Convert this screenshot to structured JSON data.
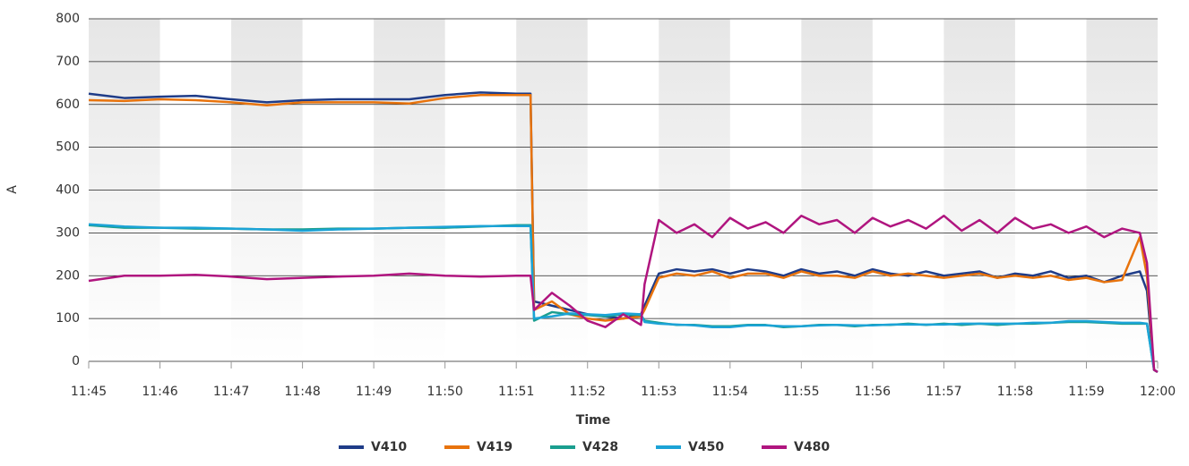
{
  "chart_data": {
    "type": "line",
    "y_label": "A",
    "x_label": "Time",
    "x": [
      705,
      705.5,
      706,
      706.5,
      707,
      707.5,
      708,
      708.5,
      709,
      709.5,
      710,
      710.5,
      711,
      711.2,
      711.25,
      711.5,
      711.75,
      712,
      712.25,
      712.5,
      712.75,
      712.8,
      713,
      713.25,
      713.5,
      713.75,
      714,
      714.25,
      714.5,
      714.75,
      715,
      715.25,
      715.5,
      715.75,
      716,
      716.25,
      716.5,
      716.75,
      717,
      717.25,
      717.5,
      717.75,
      718,
      718.25,
      718.5,
      718.75,
      719,
      719.25,
      719.5,
      719.75,
      719.85,
      719.95,
      720
    ],
    "series": [
      {
        "name": "V410",
        "color": "#1f3c88",
        "values": [
          625,
          615,
          618,
          620,
          612,
          605,
          610,
          612,
          612,
          612,
          622,
          628,
          625,
          625,
          140,
          130,
          120,
          110,
          105,
          100,
          110,
          130,
          205,
          215,
          210,
          215,
          205,
          215,
          210,
          200,
          215,
          205,
          210,
          200,
          215,
          205,
          200,
          210,
          200,
          205,
          210,
          195,
          205,
          200,
          210,
          195,
          200,
          185,
          200,
          210,
          165,
          -20,
          -25
        ]
      },
      {
        "name": "V419",
        "color": "#e8730c",
        "values": [
          610,
          608,
          612,
          610,
          605,
          598,
          605,
          605,
          605,
          602,
          615,
          622,
          622,
          622,
          120,
          140,
          110,
          100,
          95,
          100,
          105,
          120,
          195,
          205,
          200,
          210,
          195,
          205,
          205,
          195,
          210,
          200,
          200,
          195,
          210,
          200,
          205,
          200,
          195,
          200,
          205,
          195,
          200,
          195,
          200,
          190,
          195,
          185,
          190,
          290,
          200,
          -20,
          -25
        ]
      },
      {
        "name": "V428",
        "color": "#1a9e8f",
        "values": [
          318,
          312,
          312,
          310,
          310,
          308,
          308,
          310,
          310,
          312,
          312,
          315,
          318,
          318,
          95,
          115,
          110,
          108,
          105,
          110,
          108,
          95,
          90,
          85,
          85,
          82,
          82,
          85,
          85,
          80,
          82,
          85,
          85,
          82,
          85,
          85,
          88,
          85,
          88,
          85,
          88,
          85,
          88,
          88,
          90,
          92,
          92,
          90,
          88,
          88,
          88,
          -20,
          -25
        ]
      },
      {
        "name": "V450",
        "color": "#1ba3d6",
        "values": [
          320,
          315,
          312,
          312,
          310,
          308,
          305,
          308,
          310,
          312,
          314,
          316,
          316,
          316,
          100,
          105,
          112,
          110,
          108,
          112,
          110,
          92,
          88,
          86,
          84,
          80,
          80,
          84,
          84,
          82,
          82,
          84,
          85,
          84,
          84,
          86,
          86,
          86,
          86,
          88,
          88,
          88,
          88,
          90,
          90,
          94,
          94,
          92,
          90,
          90,
          88,
          -20,
          -25
        ]
      },
      {
        "name": "V480",
        "color": "#b0157f",
        "values": [
          188,
          200,
          200,
          202,
          198,
          192,
          195,
          198,
          200,
          205,
          200,
          198,
          200,
          200,
          120,
          160,
          130,
          95,
          80,
          110,
          85,
          180,
          330,
          300,
          320,
          290,
          335,
          310,
          325,
          300,
          340,
          320,
          330,
          300,
          335,
          315,
          330,
          310,
          340,
          305,
          330,
          300,
          335,
          310,
          320,
          300,
          315,
          290,
          310,
          300,
          230,
          -20,
          -25
        ]
      }
    ],
    "xlim": [
      705,
      720
    ],
    "xticks": [
      {
        "value": 705,
        "label": "11:45"
      },
      {
        "value": 706,
        "label": "11:46"
      },
      {
        "value": 707,
        "label": "11:47"
      },
      {
        "value": 708,
        "label": "11:48"
      },
      {
        "value": 709,
        "label": "11:49"
      },
      {
        "value": 710,
        "label": "11:50"
      },
      {
        "value": 711,
        "label": "11:51"
      },
      {
        "value": 712,
        "label": "11:52"
      },
      {
        "value": 713,
        "label": "11:53"
      },
      {
        "value": 714,
        "label": "11:54"
      },
      {
        "value": 715,
        "label": "11:55"
      },
      {
        "value": 716,
        "label": "11:56"
      },
      {
        "value": 717,
        "label": "11:57"
      },
      {
        "value": 718,
        "label": "11:58"
      },
      {
        "value": 719,
        "label": "11:59"
      },
      {
        "value": 720,
        "label": "12:00"
      }
    ],
    "ylim": [
      -25,
      800
    ],
    "yticks": [
      0,
      100,
      200,
      300,
      400,
      500,
      600,
      700,
      800
    ],
    "grid": true,
    "legend": "bottom"
  }
}
